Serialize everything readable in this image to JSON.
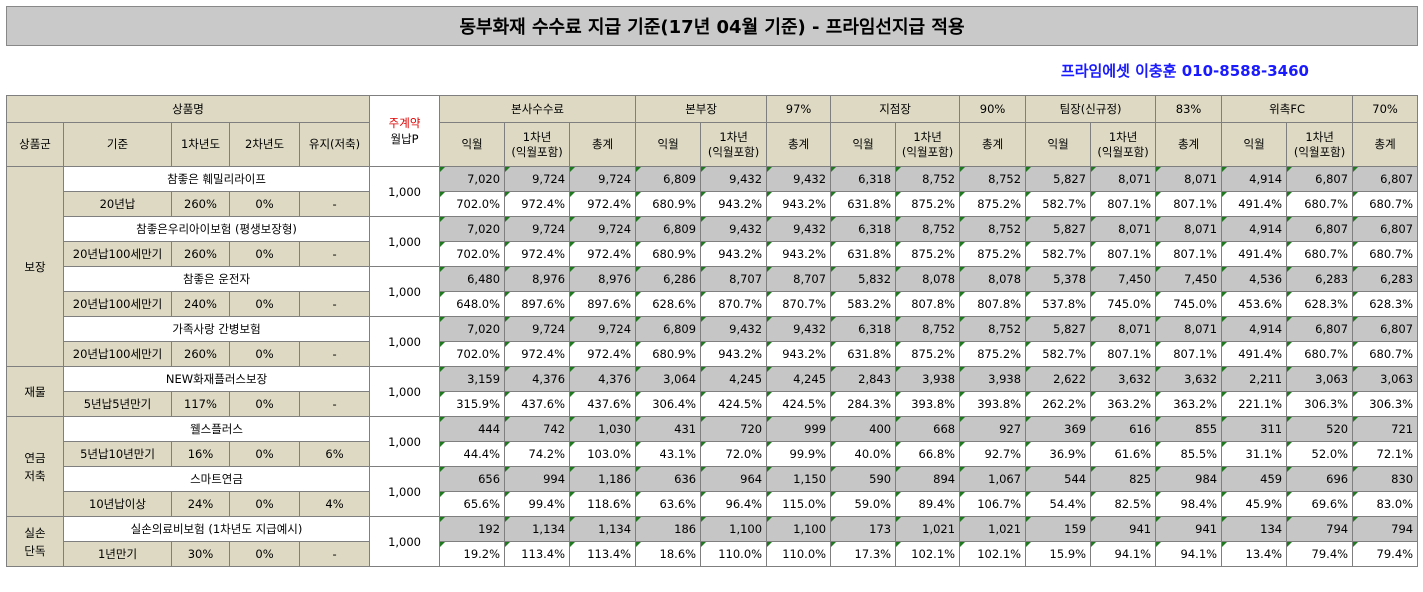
{
  "title": "동부화재 수수료 지급 기준(17년 04월 기준) - 프라임선지급 적용",
  "contact": "프라임에셋 이충훈 010-8588-3460",
  "header": {
    "product_name": "상품명",
    "main_contract": "주계약",
    "monthly_premium": "월납P",
    "groups": [
      {
        "label": "본사수수료",
        "pct": ""
      },
      {
        "label": "본부장",
        "pct": "97%"
      },
      {
        "label": "지점장",
        "pct": "90%"
      },
      {
        "label": "팀장(신규정)",
        "pct": "83%"
      },
      {
        "label": "위촉FC",
        "pct": "70%"
      }
    ],
    "sub": [
      "상품군",
      "기준",
      "1차년도",
      "2차년도",
      "유지(저축)"
    ],
    "col_next": "익월",
    "col_year1": "1차년",
    "col_year1_note": "(익월포함)",
    "col_total": "총계"
  },
  "categories": [
    {
      "name": "보장",
      "products": [
        0,
        1,
        2,
        3
      ]
    },
    {
      "name": "재물",
      "products": [
        4
      ]
    },
    {
      "name": "연금\n저축",
      "products": [
        5,
        6
      ]
    },
    {
      "name": "실손\n단독",
      "products": [
        7
      ]
    }
  ],
  "products": [
    {
      "name": "참좋은 훼밀리라이프",
      "basis": "20년납",
      "y1": "260%",
      "y2": "0%",
      "keep": "-",
      "premium": "1,000",
      "amounts": [
        "7,020",
        "9,724",
        "9,724",
        "6,809",
        "9,432",
        "9,432",
        "6,318",
        "8,752",
        "8,752",
        "5,827",
        "8,071",
        "8,071",
        "4,914",
        "6,807",
        "6,807"
      ],
      "rates": [
        "702.0%",
        "972.4%",
        "972.4%",
        "680.9%",
        "943.2%",
        "943.2%",
        "631.8%",
        "875.2%",
        "875.2%",
        "582.7%",
        "807.1%",
        "807.1%",
        "491.4%",
        "680.7%",
        "680.7%"
      ]
    },
    {
      "name": "참좋은우리아이보험 (평생보장형)",
      "basis": "20년납100세만기",
      "y1": "260%",
      "y2": "0%",
      "keep": "-",
      "premium": "1,000",
      "amounts": [
        "7,020",
        "9,724",
        "9,724",
        "6,809",
        "9,432",
        "9,432",
        "6,318",
        "8,752",
        "8,752",
        "5,827",
        "8,071",
        "8,071",
        "4,914",
        "6,807",
        "6,807"
      ],
      "rates": [
        "702.0%",
        "972.4%",
        "972.4%",
        "680.9%",
        "943.2%",
        "943.2%",
        "631.8%",
        "875.2%",
        "875.2%",
        "582.7%",
        "807.1%",
        "807.1%",
        "491.4%",
        "680.7%",
        "680.7%"
      ]
    },
    {
      "name": "참좋은 운전자",
      "basis": "20년납100세만기",
      "y1": "240%",
      "y2": "0%",
      "keep": "-",
      "premium": "1,000",
      "amounts": [
        "6,480",
        "8,976",
        "8,976",
        "6,286",
        "8,707",
        "8,707",
        "5,832",
        "8,078",
        "8,078",
        "5,378",
        "7,450",
        "7,450",
        "4,536",
        "6,283",
        "6,283"
      ],
      "rates": [
        "648.0%",
        "897.6%",
        "897.6%",
        "628.6%",
        "870.7%",
        "870.7%",
        "583.2%",
        "807.8%",
        "807.8%",
        "537.8%",
        "745.0%",
        "745.0%",
        "453.6%",
        "628.3%",
        "628.3%"
      ]
    },
    {
      "name": "가족사랑 간병보험",
      "basis": "20년납100세만기",
      "y1": "260%",
      "y2": "0%",
      "keep": "-",
      "premium": "1,000",
      "amounts": [
        "7,020",
        "9,724",
        "9,724",
        "6,809",
        "9,432",
        "9,432",
        "6,318",
        "8,752",
        "8,752",
        "5,827",
        "8,071",
        "8,071",
        "4,914",
        "6,807",
        "6,807"
      ],
      "rates": [
        "702.0%",
        "972.4%",
        "972.4%",
        "680.9%",
        "943.2%",
        "943.2%",
        "631.8%",
        "875.2%",
        "875.2%",
        "582.7%",
        "807.1%",
        "807.1%",
        "491.4%",
        "680.7%",
        "680.7%"
      ]
    },
    {
      "name": "NEW화재플러스보장",
      "basis": "5년납5년만기",
      "y1": "117%",
      "y2": "0%",
      "keep": "-",
      "premium": "1,000",
      "amounts": [
        "3,159",
        "4,376",
        "4,376",
        "3,064",
        "4,245",
        "4,245",
        "2,843",
        "3,938",
        "3,938",
        "2,622",
        "3,632",
        "3,632",
        "2,211",
        "3,063",
        "3,063"
      ],
      "rates": [
        "315.9%",
        "437.6%",
        "437.6%",
        "306.4%",
        "424.5%",
        "424.5%",
        "284.3%",
        "393.8%",
        "393.8%",
        "262.2%",
        "363.2%",
        "363.2%",
        "221.1%",
        "306.3%",
        "306.3%"
      ]
    },
    {
      "name": "웰스플러스",
      "basis": "5년납10년만기",
      "y1": "16%",
      "y2": "0%",
      "keep": "6%",
      "premium": "1,000",
      "amounts": [
        "444",
        "742",
        "1,030",
        "431",
        "720",
        "999",
        "400",
        "668",
        "927",
        "369",
        "616",
        "855",
        "311",
        "520",
        "721"
      ],
      "rates": [
        "44.4%",
        "74.2%",
        "103.0%",
        "43.1%",
        "72.0%",
        "99.9%",
        "40.0%",
        "66.8%",
        "92.7%",
        "36.9%",
        "61.6%",
        "85.5%",
        "31.1%",
        "52.0%",
        "72.1%"
      ]
    },
    {
      "name": "스마트연금",
      "basis": "10년납이상",
      "y1": "24%",
      "y2": "0%",
      "keep": "4%",
      "premium": "1,000",
      "amounts": [
        "656",
        "994",
        "1,186",
        "636",
        "964",
        "1,150",
        "590",
        "894",
        "1,067",
        "544",
        "825",
        "984",
        "459",
        "696",
        "830"
      ],
      "rates": [
        "65.6%",
        "99.4%",
        "118.6%",
        "63.6%",
        "96.4%",
        "115.0%",
        "59.0%",
        "89.4%",
        "106.7%",
        "54.4%",
        "82.5%",
        "98.4%",
        "45.9%",
        "69.6%",
        "83.0%"
      ]
    },
    {
      "name": "실손의료비보험 (1차년도 지급예시)",
      "basis": "1년만기",
      "y1": "30%",
      "y2": "0%",
      "keep": "-",
      "premium": "1,000",
      "amounts": [
        "192",
        "1,134",
        "1,134",
        "186",
        "1,100",
        "1,100",
        "173",
        "1,021",
        "1,021",
        "159",
        "941",
        "941",
        "134",
        "794",
        "794"
      ],
      "rates": [
        "19.2%",
        "113.4%",
        "113.4%",
        "18.6%",
        "110.0%",
        "110.0%",
        "17.3%",
        "102.1%",
        "102.1%",
        "15.9%",
        "94.1%",
        "94.1%",
        "13.4%",
        "79.4%",
        "79.4%"
      ]
    }
  ]
}
